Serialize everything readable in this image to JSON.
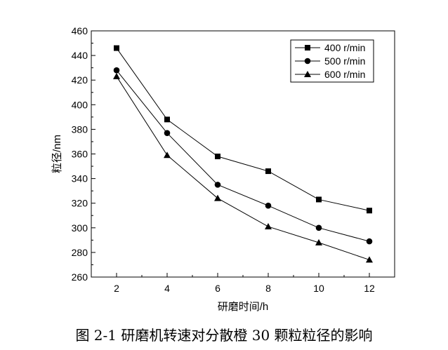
{
  "chart_data": {
    "type": "line",
    "xlabel": "研磨时间/h",
    "ylabel": "粒径/nm",
    "x": [
      2,
      4,
      6,
      8,
      10,
      12
    ],
    "xticks": [
      2,
      4,
      6,
      8,
      10,
      12
    ],
    "yticks": [
      260,
      280,
      300,
      320,
      340,
      360,
      380,
      400,
      420,
      440,
      460
    ],
    "xlim": [
      1,
      13
    ],
    "ylim": [
      260,
      460
    ],
    "grid": false,
    "legend_position": "top-right",
    "series": [
      {
        "name": "400 r/min",
        "marker": "square",
        "values": [
          446,
          388,
          358,
          346,
          323,
          314
        ]
      },
      {
        "name": "500 r/min",
        "marker": "circle",
        "values": [
          428,
          377,
          335,
          318,
          300,
          289
        ]
      },
      {
        "name": "600 r/min",
        "marker": "triangle",
        "values": [
          423,
          359,
          324,
          301,
          288,
          274
        ]
      }
    ],
    "colors": {
      "line": "#000000",
      "marker": "#000000"
    }
  },
  "caption": "图 2-1  研磨机转速对分散橙 30 颗粒粒径的影响"
}
